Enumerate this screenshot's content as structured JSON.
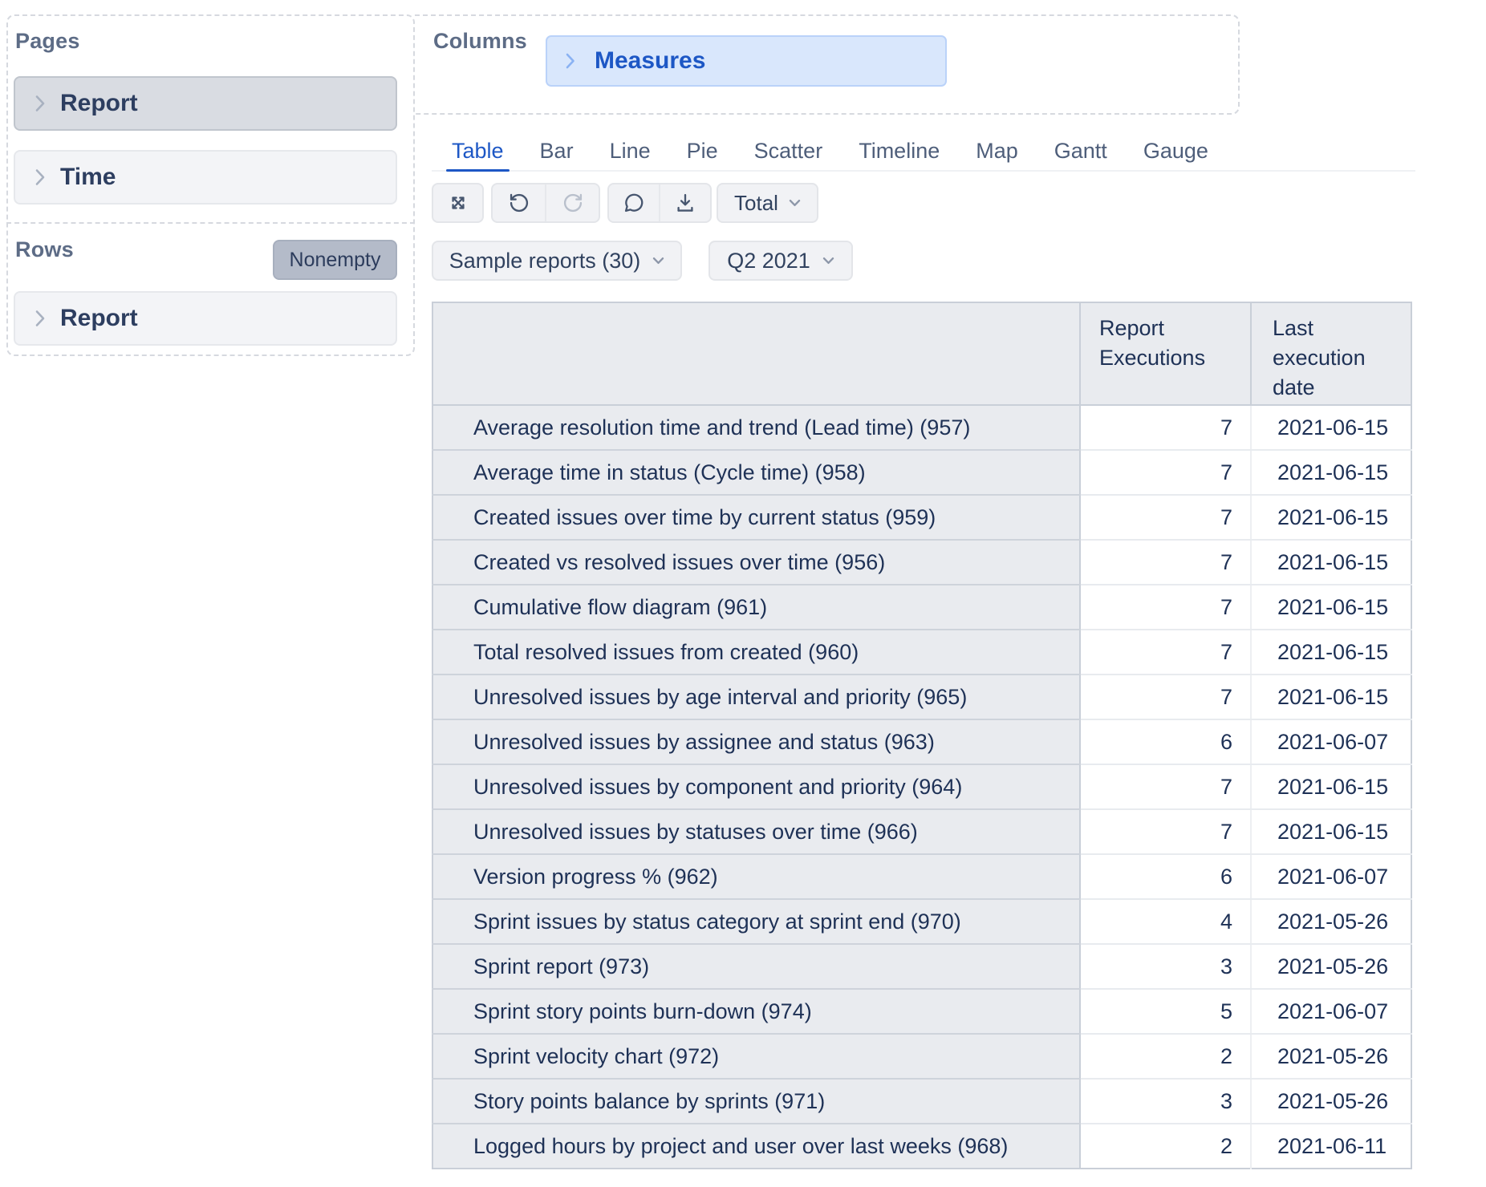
{
  "colors": {
    "accent_blue": "#1d57c5",
    "chip_bg": "#d9e7fc",
    "chip_border": "#bad2f9",
    "selected_box_bg": "#d9dce2",
    "idle_box_bg": "#f3f4f7",
    "nonempty_bg": "#b4bbc9",
    "toolbar_bg": "#f1f2f5",
    "table_header_bg": "#e9ebef",
    "section_label": "#5d6c86",
    "text_navy": "#1e3156"
  },
  "icons": [
    "chevron-right-icon",
    "chevron-down-icon",
    "expand-icon",
    "undo-icon",
    "redo-icon",
    "comment-icon",
    "download-icon"
  ],
  "sidebar": {
    "pages_label": "Pages",
    "rows_label": "Rows",
    "nonempty_label": "Nonempty",
    "page_items": [
      {
        "label": "Report",
        "selected": true
      },
      {
        "label": "Time",
        "selected": false
      }
    ],
    "row_items": [
      {
        "label": "Report"
      }
    ]
  },
  "columns": {
    "label": "Columns",
    "member": "Measures"
  },
  "tabs": {
    "items": [
      "Table",
      "Bar",
      "Line",
      "Pie",
      "Scatter",
      "Timeline",
      "Map",
      "Gantt",
      "Gauge"
    ],
    "active": "Table"
  },
  "toolbar": {
    "total_label": "Total"
  },
  "filters": {
    "report_set": "Sample reports (30)",
    "period": "Q2 2021"
  },
  "table": {
    "header": {
      "measure": "Report Executions",
      "date": "Last execution date"
    },
    "rows": [
      {
        "label": "Average resolution time and trend (Lead time) (957)",
        "executions": "7",
        "date": "2021-06-15"
      },
      {
        "label": "Average time in status (Cycle time) (958)",
        "executions": "7",
        "date": "2021-06-15"
      },
      {
        "label": "Created issues over time by current status (959)",
        "executions": "7",
        "date": "2021-06-15"
      },
      {
        "label": "Created vs resolved issues over time (956)",
        "executions": "7",
        "date": "2021-06-15"
      },
      {
        "label": "Cumulative flow diagram (961)",
        "executions": "7",
        "date": "2021-06-15"
      },
      {
        "label": "Total resolved issues from created (960)",
        "executions": "7",
        "date": "2021-06-15"
      },
      {
        "label": "Unresolved issues by age interval and priority (965)",
        "executions": "7",
        "date": "2021-06-15"
      },
      {
        "label": "Unresolved issues by assignee and status (963)",
        "executions": "6",
        "date": "2021-06-07"
      },
      {
        "label": "Unresolved issues by component and priority (964)",
        "executions": "7",
        "date": "2021-06-15"
      },
      {
        "label": "Unresolved issues by statuses over time (966)",
        "executions": "7",
        "date": "2021-06-15"
      },
      {
        "label": "Version progress % (962)",
        "executions": "6",
        "date": "2021-06-07"
      },
      {
        "label": "Sprint issues by status category at sprint end (970)",
        "executions": "4",
        "date": "2021-05-26"
      },
      {
        "label": "Sprint report (973)",
        "executions": "3",
        "date": "2021-05-26"
      },
      {
        "label": "Sprint story points burn-down (974)",
        "executions": "5",
        "date": "2021-06-07"
      },
      {
        "label": "Sprint velocity chart (972)",
        "executions": "2",
        "date": "2021-05-26"
      },
      {
        "label": "Story points balance by sprints (971)",
        "executions": "3",
        "date": "2021-05-26"
      },
      {
        "label": "Logged hours by project and user over last weeks (968)",
        "executions": "2",
        "date": "2021-06-11"
      }
    ]
  }
}
